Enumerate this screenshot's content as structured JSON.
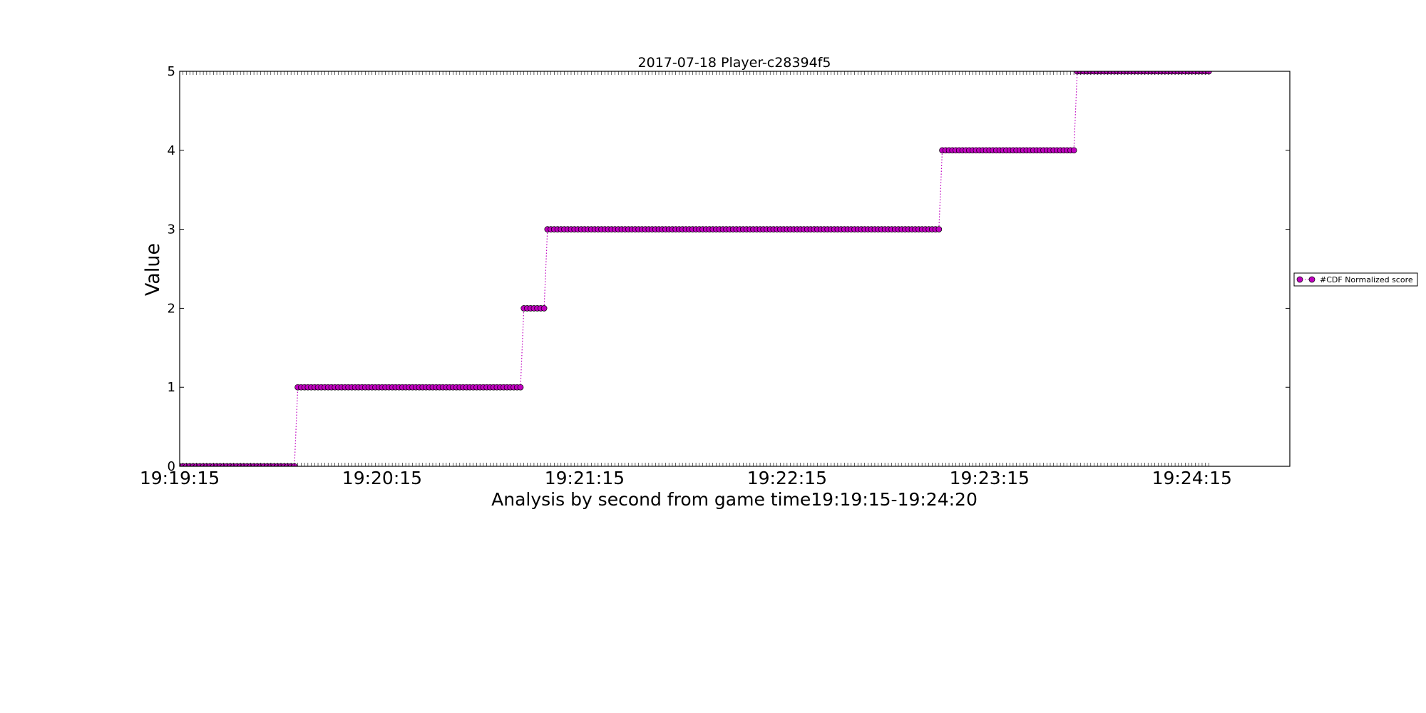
{
  "chart_data": {
    "type": "line",
    "title": "2017-07-18 Player-c28394f5",
    "xlabel": "Analysis by second from game time19:19:15-19:24:20",
    "ylabel": "Value",
    "x_unit": "time of day (HH:MM:SS)",
    "xlim": [
      "19:19:15",
      "19:24:44"
    ],
    "ylim": [
      0,
      5
    ],
    "x_tick_labels": [
      "19:19:15",
      "19:20:15",
      "19:21:15",
      "19:22:15",
      "19:23:15",
      "19:24:15"
    ],
    "y_tick_labels": [
      "0",
      "1",
      "2",
      "3",
      "4",
      "5"
    ],
    "grid": false,
    "legend_position": "right",
    "marker": "circle",
    "line_style": "dotted",
    "series": [
      {
        "name": "#CDF Normalized score",
        "color": "#bf00bf",
        "sampling": "one point per second",
        "steps": [
          {
            "from": "19:19:15",
            "to": "19:19:49",
            "value": 0
          },
          {
            "from": "19:19:50",
            "to": "19:20:56",
            "value": 1
          },
          {
            "from": "19:20:57",
            "to": "19:21:03",
            "value": 2
          },
          {
            "from": "19:21:04",
            "to": "19:23:00",
            "value": 3
          },
          {
            "from": "19:23:01",
            "to": "19:23:40",
            "value": 4
          },
          {
            "from": "19:23:41",
            "to": "19:24:20",
            "value": 5
          }
        ]
      }
    ]
  }
}
